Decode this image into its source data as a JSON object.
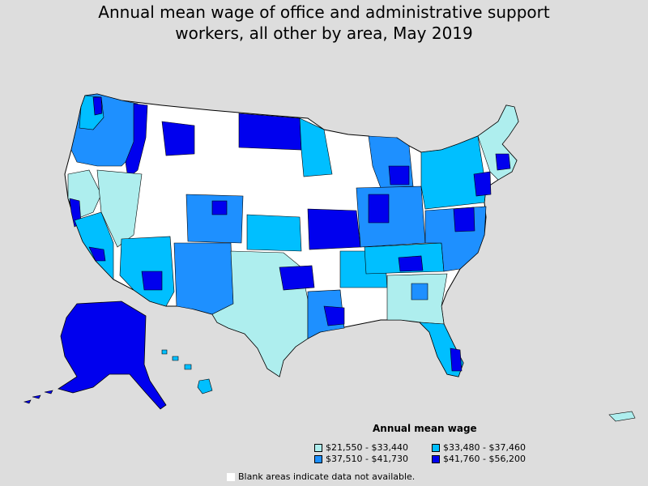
{
  "title": {
    "line1": "Annual mean wage of office and administrative support",
    "line2": "workers, all other by area, May 2019"
  },
  "legend": {
    "title": "Annual mean wage",
    "items": [
      {
        "label": "$21,550 - $33,440",
        "color": "#aeeeee"
      },
      {
        "label": "$33,480 - $37,460",
        "color": "#00bfff"
      },
      {
        "label": "$37,510 - $41,730",
        "color": "#1e90ff"
      },
      {
        "label": "$41,760 - $56,200",
        "color": "#0000ee"
      }
    ],
    "blank_note": "Blank areas indicate data not available.",
    "blank_color": "#ffffff"
  },
  "colors": {
    "background": "#dddddd",
    "border": "#000000",
    "no_data": "#ffffff"
  }
}
